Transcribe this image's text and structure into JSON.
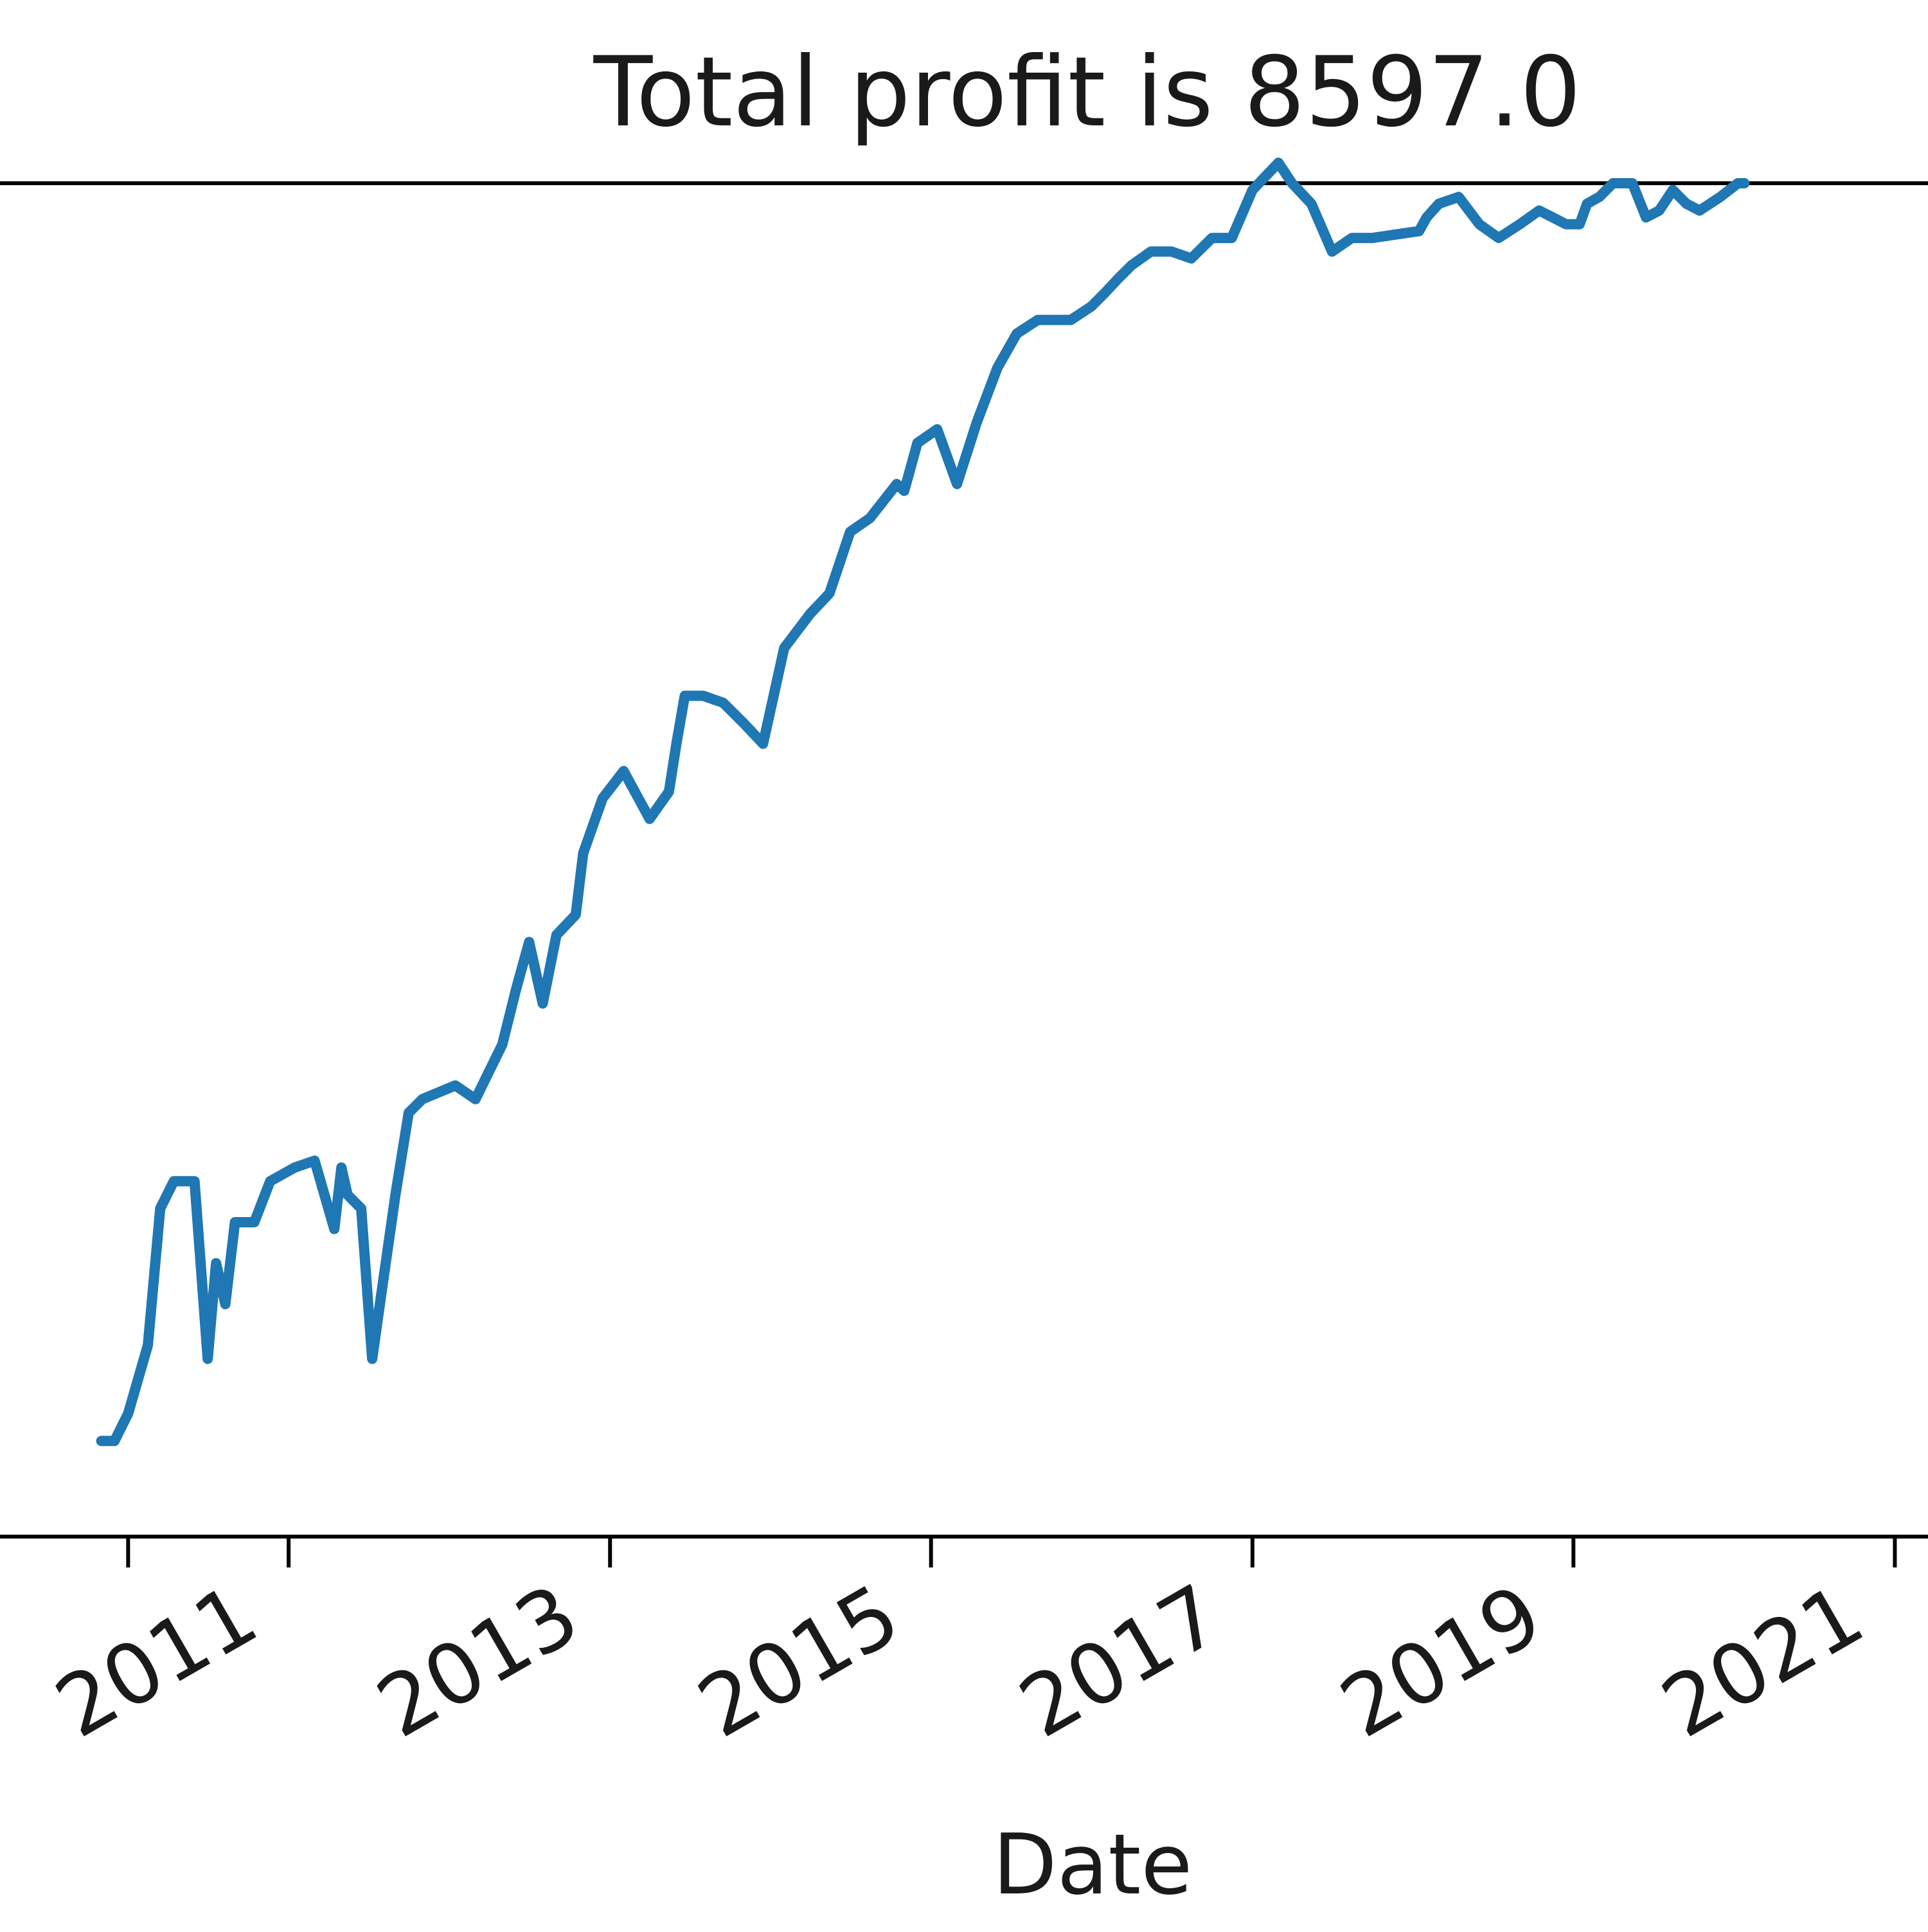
{
  "chart_data": {
    "type": "line",
    "title": "Total profit is 8597.0",
    "xlabel": "Date",
    "ylabel": "",
    "x_tick_labels": [
      "2011",
      "2013",
      "2015",
      "2017",
      "2019",
      "2021"
    ],
    "grid": false,
    "legend": "none",
    "series": [
      {
        "color": "#1f77b4",
        "x": [
          "2009-11-01",
          "2009-12-01",
          "2010-01-01",
          "2010-02-15",
          "2010-03-15",
          "2010-04-15",
          "2010-06-01",
          "2010-07-01",
          "2010-07-20",
          "2010-08-10",
          "2010-09-01",
          "2010-10-15",
          "2010-11-20",
          "2011-01-15",
          "2011-03-01",
          "2011-04-15",
          "2011-05-01",
          "2011-05-15",
          "2011-06-15",
          "2011-07-10",
          "2011-08-01",
          "2011-09-01",
          "2011-10-01",
          "2011-11-01",
          "2012-01-15",
          "2012-03-01",
          "2012-05-01",
          "2012-06-01",
          "2012-07-01",
          "2012-08-01",
          "2012-09-01",
          "2012-10-15",
          "2012-11-01",
          "2012-12-15",
          "2013-02-01",
          "2013-04-01",
          "2013-05-15",
          "2013-06-01",
          "2013-06-20",
          "2013-08-01",
          "2013-09-15",
          "2013-11-01",
          "2013-12-15",
          "2014-02-01",
          "2014-04-01",
          "2014-05-15",
          "2014-07-01",
          "2014-08-15",
          "2014-10-15",
          "2014-11-01",
          "2014-12-01",
          "2015-01-15",
          "2015-02-01",
          "2015-03-01",
          "2015-04-15",
          "2015-06-01",
          "2015-07-15",
          "2015-09-01",
          "2015-10-15",
          "2015-11-15",
          "2016-01-01",
          "2016-02-01",
          "2016-03-01",
          "2016-04-01",
          "2016-05-15",
          "2016-07-01",
          "2016-08-15",
          "2016-10-01",
          "2016-11-15",
          "2017-01-01",
          "2017-03-01",
          "2017-04-01",
          "2017-05-15",
          "2017-07-01",
          "2017-08-15",
          "2017-10-01",
          "2018-01-15",
          "2018-02-01",
          "2018-03-01",
          "2018-04-15",
          "2018-06-01",
          "2018-07-15",
          "2018-09-01",
          "2018-10-15",
          "2018-11-15",
          "2018-12-15",
          "2019-01-15",
          "2019-02-01",
          "2019-03-01",
          "2019-04-01",
          "2019-05-15",
          "2019-06-15",
          "2019-07-15",
          "2019-08-15",
          "2019-09-15",
          "2019-10-15",
          "2019-12-01",
          "2020-01-10",
          "2020-01-25"
        ],
        "y": [
          0,
          0,
          200,
          700,
          1700,
          1900,
          1900,
          600,
          1300,
          1000,
          1600,
          1600,
          1900,
          2000,
          2050,
          1550,
          2000,
          1800,
          1700,
          600,
          1100,
          1800,
          2400,
          2500,
          2600,
          2500,
          2900,
          3300,
          3650,
          3200,
          3700,
          3850,
          4300,
          4700,
          4900,
          4550,
          4750,
          5100,
          5450,
          5450,
          5400,
          5250,
          5100,
          5800,
          6050,
          6200,
          6650,
          6750,
          7000,
          6950,
          7300,
          7400,
          7250,
          7000,
          7450,
          7850,
          8100,
          8200,
          8200,
          8200,
          8300,
          8400,
          8500,
          8600,
          8700,
          8700,
          8650,
          8800,
          8800,
          9150,
          9350,
          9200,
          9050,
          8700,
          8800,
          8800,
          8850,
          8950,
          9050,
          9100,
          8900,
          8800,
          8900,
          9000,
          8950,
          8900,
          8900,
          9050,
          9100,
          9200,
          9200,
          8950,
          9000,
          9150,
          9050,
          9000,
          9100,
          9200,
          9200
        ]
      }
    ],
    "xlim": [
      "2009-03-01",
      "2021-04-01"
    ],
    "ylim": [
      -700,
      9200
    ]
  }
}
